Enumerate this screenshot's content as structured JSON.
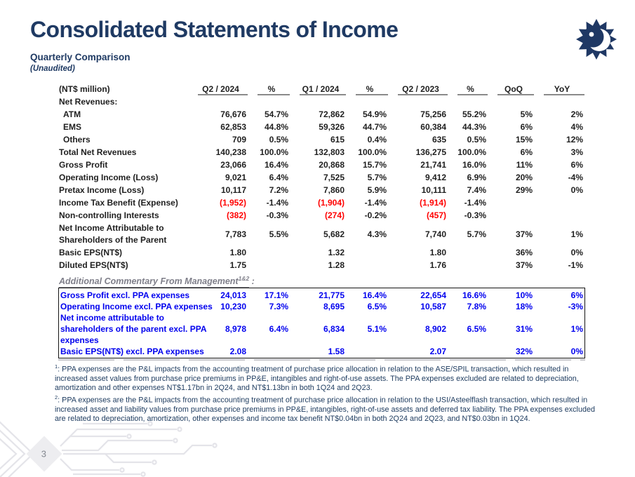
{
  "slide": {
    "title": "Consolidated Statements of Income",
    "subtitle": "Quarterly Comparison",
    "unaudited": "(Unaudited)",
    "page_number": "3",
    "logo": "ase-sun-face-logo"
  },
  "colors": {
    "title_navy": "#1f3a63",
    "table_text": "#1f1f1f",
    "negative_red": "#ff0000",
    "commentary_blue": "#0000ee",
    "header_rule_gray": "#8a8a8a",
    "commentary_heading_gray": "#7f7f8a",
    "footnote_navy": "#1c3a5e"
  },
  "income_table": {
    "unit_label": "(NT$ million)",
    "columns": [
      "Q2 / 2024",
      "%",
      "Q1 / 2024",
      "%",
      "Q2 / 2023",
      "%",
      "QoQ",
      "YoY"
    ],
    "rows": [
      {
        "label": "Net Revenues:",
        "cells": [
          "",
          "",
          "",
          "",
          "",
          "",
          "",
          ""
        ]
      },
      {
        "label": "ATM",
        "indent": true,
        "cells": [
          "76,676",
          "54.7%",
          "72,862",
          "54.9%",
          "75,256",
          "55.2%",
          "5%",
          "2%"
        ]
      },
      {
        "label": "EMS",
        "indent": true,
        "cells": [
          "62,853",
          "44.8%",
          "59,326",
          "44.7%",
          "60,384",
          "44.3%",
          "6%",
          "4%"
        ]
      },
      {
        "label": "Others",
        "indent": true,
        "cells": [
          "709",
          "0.5%",
          "615",
          "0.4%",
          "635",
          "0.5%",
          "15%",
          "12%"
        ]
      },
      {
        "label": "Total Net Revenues",
        "cells": [
          "140,238",
          "100.0%",
          "132,803",
          "100.0%",
          "136,275",
          "100.0%",
          "6%",
          "3%"
        ]
      },
      {
        "label": "Gross Profit",
        "cells": [
          "23,066",
          "16.4%",
          "20,868",
          "15.7%",
          "21,741",
          "16.0%",
          "11%",
          "6%"
        ]
      },
      {
        "label": "Operating Income (Loss)",
        "cells": [
          "9,021",
          "6.4%",
          "7,525",
          "5.7%",
          "9,412",
          "6.9%",
          "20%",
          "-4%"
        ]
      },
      {
        "label": "Pretax Income (Loss)",
        "cells": [
          "10,117",
          "7.2%",
          "7,860",
          "5.9%",
          "10,111",
          "7.4%",
          "29%",
          "0%"
        ]
      },
      {
        "label": "Income Tax Benefit (Expense)",
        "cells": [
          "(1,952)",
          "-1.4%",
          "(1,904)",
          "-1.4%",
          "(1,914)",
          "-1.4%",
          "",
          ""
        ]
      },
      {
        "label": "Non-controlling Interests",
        "cells": [
          "(382)",
          "-0.3%",
          "(274)",
          "-0.2%",
          "(457)",
          "-0.3%",
          "",
          ""
        ]
      },
      {
        "label": "Net Income Attributable to\nShareholders of the Parent",
        "two_line": true,
        "cells": [
          "7,783",
          "5.5%",
          "5,682",
          "4.3%",
          "7,740",
          "5.7%",
          "37%",
          "1%"
        ]
      },
      {
        "label": "Basic EPS(NT$)",
        "cells": [
          "1.80",
          "",
          "1.32",
          "",
          "1.80",
          "",
          "36%",
          "0%"
        ]
      },
      {
        "label": "Diluted EPS(NT$)",
        "cells": [
          "1.75",
          "",
          "1.28",
          "",
          "1.76",
          "",
          "37%",
          "-1%"
        ]
      }
    ]
  },
  "commentary_table": {
    "heading": "Additional Commentary From Management",
    "heading_sup": "1&2",
    "heading_suffix": " :",
    "rows": [
      {
        "label": "Gross Profit excl. PPA expenses",
        "cells": [
          "24,013",
          "17.1%",
          "21,775",
          "16.4%",
          "22,654",
          "16.6%",
          "10%",
          "6%"
        ]
      },
      {
        "label": "Operating Income excl. PPA expenses",
        "cells": [
          "10,230",
          "7.3%",
          "8,695",
          "6.5%",
          "10,587",
          "7.8%",
          "18%",
          "-3%"
        ]
      },
      {
        "label": "Net income attributable to\nshareholders of the parent excl. PPA\nexpenses",
        "cells": [
          "8,978",
          "6.4%",
          "6,834",
          "5.1%",
          "8,902",
          "6.5%",
          "31%",
          "1%"
        ]
      },
      {
        "label": "Basic EPS(NT$) excl. PPA expenses",
        "cells": [
          "2.08",
          "",
          "1.58",
          "",
          "2.07",
          "",
          "32%",
          "0%"
        ]
      }
    ]
  },
  "footnotes": [
    {
      "sup": "1",
      "text": ": PPA expenses are the P&L impacts from the accounting treatment of purchase price allocation in relation to the ASE/SPIL transaction, which resulted in increased asset values from purchase price premiums in PP&E, intangibles and right-of-use assets.  The PPA expenses excluded are related to depreciation, amortization and other expenses NT$1.17bn in 2Q24, and NT$1.13bn in both 1Q24 and 2Q23."
    },
    {
      "sup": "2",
      "text": ": PPA expenses are the P&L impacts from the accounting treatment of purchase price allocation in relation to the USI/Asteelflash transaction, which resulted in increased asset and liability values from purchase price premiums in PP&E, intangibles, right-of-use assets and deferred tax liability.  The PPA expenses excluded are related to depreciation, amortization, other expenses and income tax benefit NT$0.04bn in both 2Q24 and 2Q23, and NT$0.03bn in 1Q24."
    }
  ]
}
